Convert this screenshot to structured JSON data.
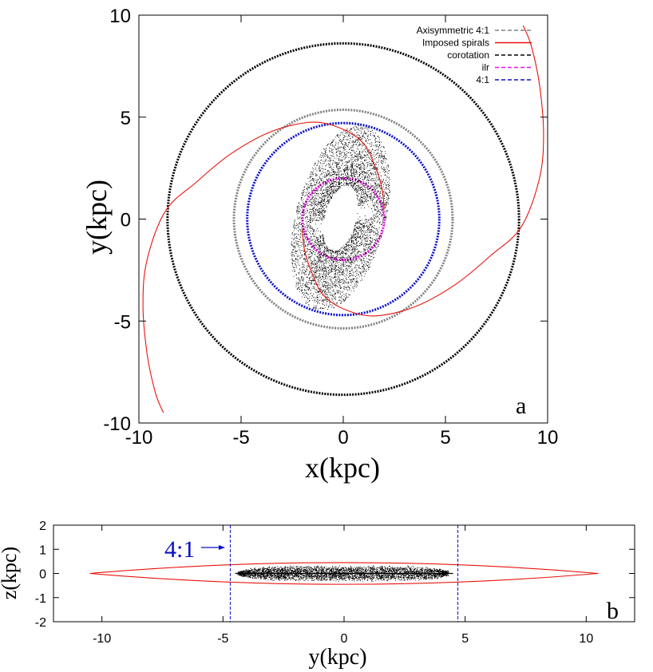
{
  "chart_data": [
    {
      "panel": "a",
      "type": "line",
      "xlabel": "x(kpc)",
      "ylabel": "y(kpc)",
      "xlim": [
        -10,
        10
      ],
      "ylim": [
        -10,
        10
      ],
      "xticks": [
        "-10",
        "-5",
        "0",
        "5",
        "10"
      ],
      "yticks": [
        "-10",
        "-5",
        "0",
        "5",
        "10"
      ],
      "grid": false,
      "legend_placement": "top-right",
      "panel_label": "a",
      "legend": [
        {
          "label": "Axisymmetric 4:1",
          "color": "#808080",
          "dash": "dashed"
        },
        {
          "label": "Imposed spirals",
          "color": "#e8140e",
          "dash": "solid"
        },
        {
          "label": "corotation",
          "color": "#000000",
          "dash": "dashed"
        },
        {
          "label": "ilr",
          "color": "#ee10ee",
          "dash": "dashed"
        },
        {
          "label": "4:1",
          "color": "#0a10c8",
          "dash": "dashed"
        }
      ],
      "circles": [
        {
          "name": "corotation",
          "radius": 8.6,
          "color": "#000000"
        },
        {
          "name": "Axisymmetric 4:1",
          "radius": 5.35,
          "color": "#808080"
        },
        {
          "name": "4:1",
          "radius": 4.7,
          "color": "#0a10c8"
        },
        {
          "name": "ilr",
          "radius": 2.0,
          "color": "#ee10ee"
        }
      ],
      "spirals": [
        {
          "name": "Imposed spirals",
          "color": "#e8140e",
          "points": [
            [
              2.0,
              0.5
            ],
            [
              1.9,
              1.5
            ],
            [
              1.55,
              2.6
            ],
            [
              1.0,
              3.7
            ],
            [
              0.0,
              4.4
            ],
            [
              -1.5,
              4.75
            ],
            [
              -3.5,
              4.3
            ],
            [
              -5.5,
              3.2
            ],
            [
              -7.2,
              1.8
            ],
            [
              -8.7,
              0.4
            ],
            [
              -9.6,
              -2.0
            ],
            [
              -9.8,
              -4.2
            ],
            [
              -9.6,
              -6.6
            ],
            [
              -9.2,
              -8.5
            ],
            [
              -8.8,
              -9.5
            ]
          ]
        },
        {
          "name": "Imposed spirals",
          "color": "#e8140e",
          "points": [
            [
              -2.0,
              -0.5
            ],
            [
              -1.9,
              -1.5
            ],
            [
              -1.55,
              -2.6
            ],
            [
              -1.0,
              -3.7
            ],
            [
              0.0,
              -4.4
            ],
            [
              1.5,
              -4.75
            ],
            [
              3.5,
              -4.3
            ],
            [
              5.5,
              -3.2
            ],
            [
              7.2,
              -1.8
            ],
            [
              8.7,
              -0.4
            ],
            [
              9.6,
              2.0
            ],
            [
              9.8,
              4.2
            ],
            [
              9.6,
              6.6
            ],
            [
              9.2,
              8.5
            ],
            [
              8.8,
              9.5
            ]
          ]
        }
      ],
      "orbit_cloud": {
        "x_range": [
          -2.5,
          2.2
        ],
        "y_range": [
          -4.6,
          4.7
        ],
        "color": "#000000"
      }
    },
    {
      "panel": "b",
      "type": "line",
      "xlabel": "y(kpc)",
      "ylabel": "z(kpc)",
      "xlim": [
        -12,
        12
      ],
      "ylim": [
        -2,
        2
      ],
      "xticks": [
        "-10",
        "-5",
        "0",
        "5",
        "10"
      ],
      "yticks": [
        "-2",
        "-1",
        "0",
        "1",
        "2"
      ],
      "grid": false,
      "panel_label": "b",
      "envelope": {
        "half_width": 10.5,
        "half_height": 0.45,
        "color": "#e8140e"
      },
      "vlines": [
        {
          "x": -4.7,
          "color": "#0a10c8"
        },
        {
          "x": 4.7,
          "color": "#0a10c8"
        }
      ],
      "annotation": {
        "text": "4:1",
        "color": "#0a10c8",
        "points_to": -4.7
      },
      "orbit_cloud": {
        "x_range": [
          -4.4,
          4.3
        ],
        "z_range": [
          -0.32,
          0.35
        ],
        "color": "#000000"
      }
    }
  ]
}
